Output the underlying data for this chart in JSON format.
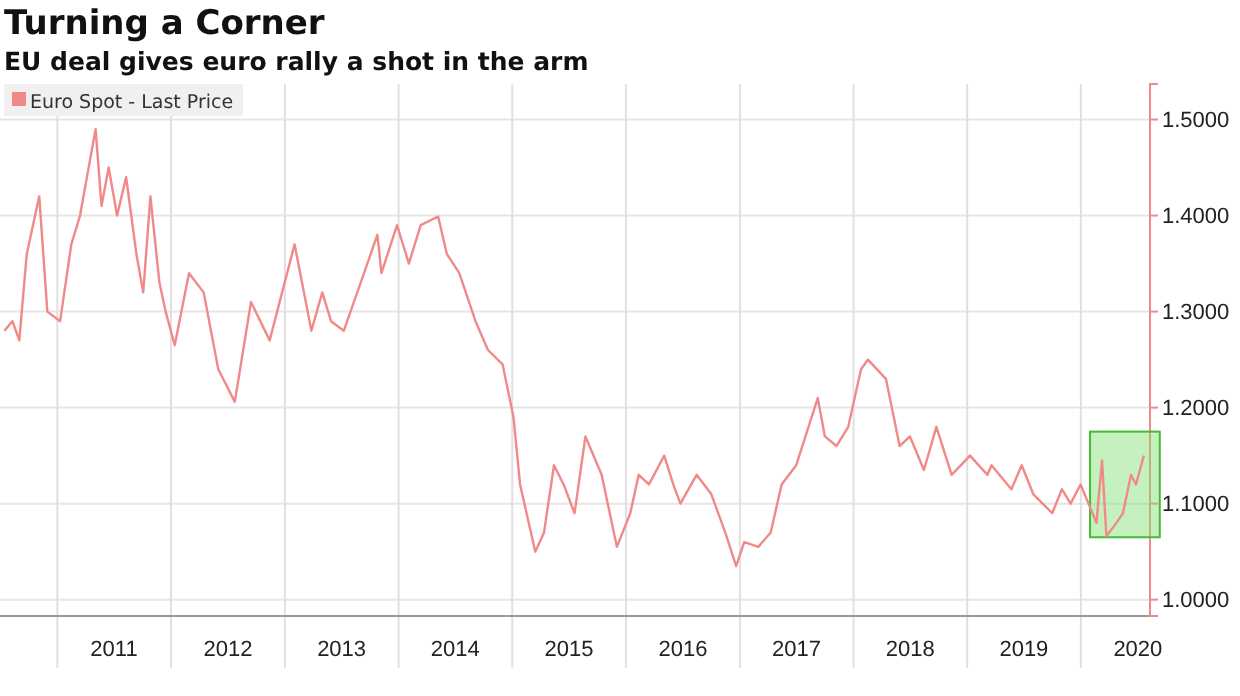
{
  "chart_data": {
    "type": "line",
    "title": "Turning a Corner",
    "subtitle": "EU deal gives euro rally a shot in the arm",
    "x": [
      "2010-07-15",
      "2010-08-10",
      "2010-09-01",
      "2010-09-25",
      "2010-11-04",
      "2010-11-30",
      "2011-01-10",
      "2011-02-15",
      "2011-03-15",
      "2011-05-04",
      "2011-05-23",
      "2011-06-15",
      "2011-07-12",
      "2011-08-10",
      "2011-09-12",
      "2011-10-04",
      "2011-10-27",
      "2011-11-25",
      "2011-12-15",
      "2012-01-13",
      "2012-02-28",
      "2012-04-15",
      "2012-06-01",
      "2012-07-24",
      "2012-09-14",
      "2012-11-13",
      "2013-02-01",
      "2013-03-27",
      "2013-05-01",
      "2013-05-29",
      "2013-07-09",
      "2013-09-01",
      "2013-10-25",
      "2013-11-07",
      "2013-12-27",
      "2014-02-03",
      "2014-03-13",
      "2014-05-08",
      "2014-06-05",
      "2014-07-15",
      "2014-09-05",
      "2014-10-15",
      "2014-12-01",
      "2015-01-05",
      "2015-01-26",
      "2015-03-16",
      "2015-04-13",
      "2015-05-15",
      "2015-06-15",
      "2015-07-20",
      "2015-08-24",
      "2015-10-15",
      "2015-12-03",
      "2016-01-15",
      "2016-02-11",
      "2016-03-15",
      "2016-05-03",
      "2016-06-01",
      "2016-06-24",
      "2016-08-15",
      "2016-10-01",
      "2016-11-15",
      "2016-12-20",
      "2017-01-15",
      "2017-03-01",
      "2017-04-10",
      "2017-05-15",
      "2017-07-01",
      "2017-09-08",
      "2017-10-01",
      "2017-11-07",
      "2017-12-15",
      "2018-01-25",
      "2018-02-16",
      "2018-04-15",
      "2018-05-29",
      "2018-07-01",
      "2018-08-15",
      "2018-09-24",
      "2018-11-12",
      "2019-01-10",
      "2019-03-07",
      "2019-03-20",
      "2019-05-23",
      "2019-06-25",
      "2019-08-01",
      "2019-10-01",
      "2019-11-01",
      "2019-11-29",
      "2019-12-31",
      "2020-02-20",
      "2020-03-09",
      "2020-03-23",
      "2020-04-24",
      "2020-05-15",
      "2020-06-10",
      "2020-06-26",
      "2020-07-21"
    ],
    "series": [
      {
        "name": "Euro Spot - Last Price",
        "color": "#f08a8a",
        "values": [
          1.28,
          1.29,
          1.27,
          1.36,
          1.42,
          1.3,
          1.29,
          1.37,
          1.4,
          1.49,
          1.41,
          1.45,
          1.4,
          1.44,
          1.36,
          1.32,
          1.42,
          1.33,
          1.3,
          1.265,
          1.34,
          1.32,
          1.24,
          1.206,
          1.31,
          1.27,
          1.37,
          1.28,
          1.32,
          1.29,
          1.28,
          1.33,
          1.38,
          1.34,
          1.39,
          1.35,
          1.39,
          1.399,
          1.36,
          1.34,
          1.29,
          1.26,
          1.245,
          1.19,
          1.12,
          1.05,
          1.07,
          1.14,
          1.12,
          1.09,
          1.17,
          1.13,
          1.055,
          1.09,
          1.13,
          1.12,
          1.15,
          1.12,
          1.1,
          1.13,
          1.11,
          1.07,
          1.035,
          1.06,
          1.055,
          1.07,
          1.12,
          1.14,
          1.21,
          1.17,
          1.16,
          1.18,
          1.24,
          1.25,
          1.23,
          1.16,
          1.17,
          1.135,
          1.18,
          1.13,
          1.15,
          1.13,
          1.14,
          1.115,
          1.14,
          1.11,
          1.09,
          1.115,
          1.1,
          1.12,
          1.08,
          1.145,
          1.066,
          1.08,
          1.09,
          1.13,
          1.12,
          1.15
        ]
      }
    ],
    "xlim": [
      "2010-07-01",
      "2020-08-10"
    ],
    "xticks": [
      {
        "value": "2011-01-01",
        "label": null
      },
      {
        "value": "2011-07-02",
        "label": "2011"
      },
      {
        "value": "2012-01-01",
        "label": null
      },
      {
        "value": "2012-07-02",
        "label": "2012"
      },
      {
        "value": "2013-01-01",
        "label": null
      },
      {
        "value": "2013-07-02",
        "label": "2013"
      },
      {
        "value": "2014-01-01",
        "label": null
      },
      {
        "value": "2014-07-02",
        "label": "2014"
      },
      {
        "value": "2015-01-01",
        "label": null
      },
      {
        "value": "2015-07-02",
        "label": "2015"
      },
      {
        "value": "2016-01-01",
        "label": null
      },
      {
        "value": "2016-07-02",
        "label": "2016"
      },
      {
        "value": "2017-01-01",
        "label": null
      },
      {
        "value": "2017-07-02",
        "label": "2017"
      },
      {
        "value": "2018-01-01",
        "label": null
      },
      {
        "value": "2018-07-02",
        "label": "2018"
      },
      {
        "value": "2019-01-01",
        "label": null
      },
      {
        "value": "2019-07-02",
        "label": "2019"
      },
      {
        "value": "2020-01-01",
        "label": null
      },
      {
        "value": "2020-07-02",
        "label": "2020"
      }
    ],
    "ylim": [
      0.983,
      1.537
    ],
    "yticks": [
      {
        "value": 1.0,
        "label": "1.0000"
      },
      {
        "value": 1.1,
        "label": "1.1000"
      },
      {
        "value": 1.2,
        "label": "1.2000"
      },
      {
        "value": 1.3,
        "label": "1.3000"
      },
      {
        "value": 1.4,
        "label": "1.4000"
      },
      {
        "value": 1.5,
        "label": "1.5000"
      }
    ],
    "grid": true,
    "legend": "top left",
    "line_style": "solid"
  }
}
